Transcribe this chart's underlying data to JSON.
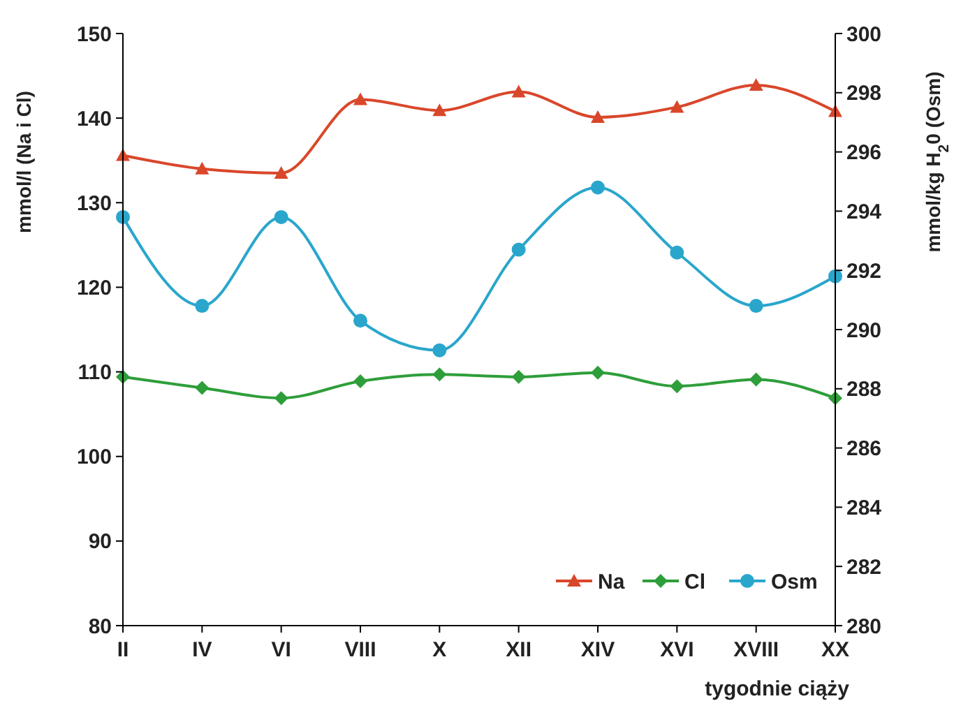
{
  "chart_data": {
    "type": "line",
    "xlabel": "tygodnie ciąży",
    "ylabel": "mmol/l (Na i Cl)",
    "y2label": "mmol/kg H$_{2}$0 (Osm)",
    "categories": [
      "II",
      "IV",
      "VI",
      "VIII",
      "X",
      "XII",
      "XIV",
      "XVI",
      "XVIII",
      "XX"
    ],
    "ylim": [
      80,
      150
    ],
    "yticks": [
      80,
      90,
      100,
      110,
      120,
      130,
      140,
      150
    ],
    "y2lim": [
      280,
      300
    ],
    "y2ticks": [
      280,
      282,
      284,
      286,
      288,
      290,
      292,
      294,
      296,
      298,
      300
    ],
    "legend": "bottom right",
    "grid": false,
    "series": [
      {
        "name": "Na",
        "color": "#d9472b",
        "marker": "triangle",
        "values": [
          135.6,
          134.0,
          133.5,
          142.2,
          140.9,
          143.1,
          140.1,
          141.3,
          143.9,
          140.8
        ]
      },
      {
        "name": "Cl",
        "color": "#2e9e3a",
        "marker": "diamond",
        "values": [
          109.4,
          108.1,
          106.9,
          108.9,
          109.7,
          109.4,
          109.9,
          108.3,
          109.1,
          106.9
        ]
      },
      {
        "name": "Osm",
        "color": "#2aa6cc",
        "marker": "circle",
        "axis": "y2",
        "values": [
          293.8,
          290.8,
          293.8,
          290.3,
          289.3,
          292.7,
          294.8,
          292.6,
          290.8,
          291.8
        ]
      }
    ]
  }
}
